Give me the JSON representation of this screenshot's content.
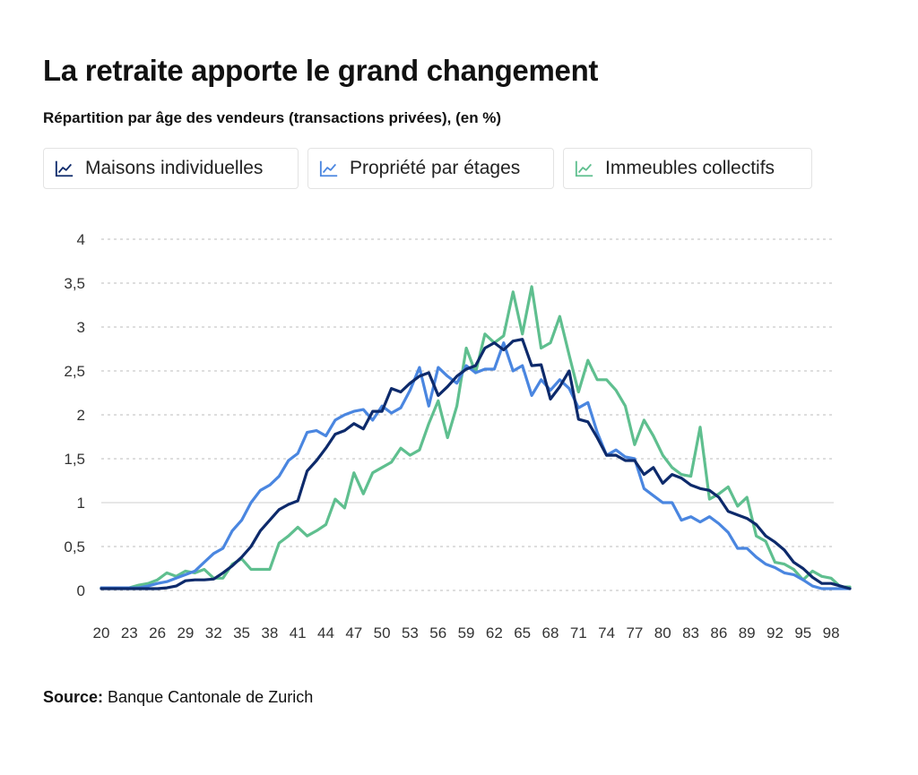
{
  "header": {
    "title": "La retraite apporte le grand changement",
    "subtitle": "Répartition par âge des vendeurs (transactions privées), (en %)"
  },
  "legend": [
    {
      "label": "Maisons individuelles",
      "color": "#0d2a6b",
      "icon": "line-chart-icon"
    },
    {
      "label": "Propriété par étages",
      "color": "#4a86e0",
      "icon": "line-chart-icon"
    },
    {
      "label": "Immeubles collectifs",
      "color": "#5fbf8f",
      "icon": "line-chart-icon"
    }
  ],
  "source": {
    "label": "Source:",
    "text": "Banque Cantonale de Zurich"
  },
  "chart_data": {
    "type": "line",
    "x": [
      20,
      21,
      22,
      23,
      24,
      25,
      26,
      27,
      28,
      29,
      30,
      31,
      32,
      33,
      34,
      35,
      36,
      37,
      38,
      39,
      40,
      41,
      42,
      43,
      44,
      45,
      46,
      47,
      48,
      49,
      50,
      51,
      52,
      53,
      54,
      55,
      56,
      57,
      58,
      59,
      60,
      61,
      62,
      63,
      64,
      65,
      66,
      67,
      68,
      69,
      70,
      71,
      72,
      73,
      74,
      75,
      76,
      77,
      78,
      79,
      80,
      81,
      82,
      83,
      84,
      85,
      86,
      87,
      88,
      89,
      90,
      91,
      92,
      93,
      94,
      95,
      96,
      97,
      98,
      99,
      100
    ],
    "x_ticks": [
      "20",
      "23",
      "26",
      "29",
      "32",
      "35",
      "38",
      "41",
      "44",
      "47",
      "50",
      "53",
      "56",
      "59",
      "62",
      "65",
      "68",
      "71",
      "74",
      "77",
      "80",
      "83",
      "86",
      "89",
      "92",
      "95",
      "98"
    ],
    "y_ticks": [
      "0",
      "0,5",
      "1",
      "1,5",
      "2",
      "2,5",
      "3",
      "3,5",
      "4"
    ],
    "ylim": [
      0,
      4
    ],
    "xlim": [
      20,
      100
    ],
    "grid": true,
    "legend_position": "top-left",
    "series": [
      {
        "name": "Maisons individuelles",
        "color": "#0d2a6b",
        "values": [
          0.02,
          0.02,
          0.02,
          0.02,
          0.02,
          0.02,
          0.02,
          0.03,
          0.05,
          0.11,
          0.12,
          0.12,
          0.13,
          0.2,
          0.28,
          0.38,
          0.5,
          0.68,
          0.8,
          0.92,
          0.98,
          1.02,
          1.36,
          1.48,
          1.62,
          1.78,
          1.82,
          1.9,
          1.84,
          2.04,
          2.04,
          2.3,
          2.26,
          2.36,
          2.44,
          2.48,
          2.22,
          2.32,
          2.44,
          2.52,
          2.56,
          2.76,
          2.82,
          2.74,
          2.84,
          2.86,
          2.56,
          2.57,
          2.18,
          2.32,
          2.5,
          1.95,
          1.92,
          1.74,
          1.54,
          1.54,
          1.48,
          1.48,
          1.32,
          1.4,
          1.22,
          1.32,
          1.28,
          1.2,
          1.16,
          1.14,
          1.06,
          0.9,
          0.86,
          0.82,
          0.75,
          0.62,
          0.55,
          0.46,
          0.32,
          0.25,
          0.15,
          0.08,
          0.08,
          0.05,
          0.02
        ]
      },
      {
        "name": "Propriété par étages",
        "color": "#4a86e0",
        "values": [
          0.03,
          0.03,
          0.03,
          0.03,
          0.03,
          0.05,
          0.08,
          0.1,
          0.14,
          0.18,
          0.22,
          0.32,
          0.42,
          0.48,
          0.68,
          0.8,
          1.0,
          1.14,
          1.2,
          1.3,
          1.48,
          1.56,
          1.8,
          1.82,
          1.76,
          1.94,
          2.0,
          2.04,
          2.06,
          1.94,
          2.1,
          2.02,
          2.08,
          2.28,
          2.54,
          2.1,
          2.54,
          2.44,
          2.36,
          2.56,
          2.48,
          2.52,
          2.52,
          2.82,
          2.5,
          2.56,
          2.22,
          2.4,
          2.28,
          2.4,
          2.3,
          2.08,
          2.14,
          1.8,
          1.54,
          1.6,
          1.52,
          1.5,
          1.16,
          1.08,
          1.0,
          1.0,
          0.8,
          0.84,
          0.78,
          0.84,
          0.76,
          0.66,
          0.48,
          0.48,
          0.38,
          0.3,
          0.26,
          0.2,
          0.18,
          0.12,
          0.05,
          0.02,
          0.02,
          0.02,
          0.02
        ]
      },
      {
        "name": "Immeubles collectifs",
        "color": "#5fbf8f",
        "values": [
          0.03,
          0.03,
          0.03,
          0.03,
          0.06,
          0.08,
          0.12,
          0.2,
          0.16,
          0.22,
          0.2,
          0.24,
          0.14,
          0.14,
          0.3,
          0.36,
          0.24,
          0.24,
          0.24,
          0.54,
          0.62,
          0.72,
          0.62,
          0.68,
          0.75,
          1.04,
          0.94,
          1.34,
          1.1,
          1.34,
          1.4,
          1.46,
          1.62,
          1.54,
          1.6,
          1.9,
          2.16,
          1.74,
          2.1,
          2.76,
          2.48,
          2.92,
          2.82,
          2.9,
          3.4,
          2.92,
          3.46,
          2.76,
          2.82,
          3.12,
          2.68,
          2.26,
          2.62,
          2.4,
          2.4,
          2.28,
          2.1,
          1.66,
          1.94,
          1.76,
          1.54,
          1.4,
          1.32,
          1.3,
          1.86,
          1.04,
          1.1,
          1.18,
          0.96,
          1.06,
          0.62,
          0.56,
          0.32,
          0.3,
          0.24,
          0.12,
          0.22,
          0.16,
          0.14,
          0.04,
          0.04
        ]
      }
    ]
  }
}
